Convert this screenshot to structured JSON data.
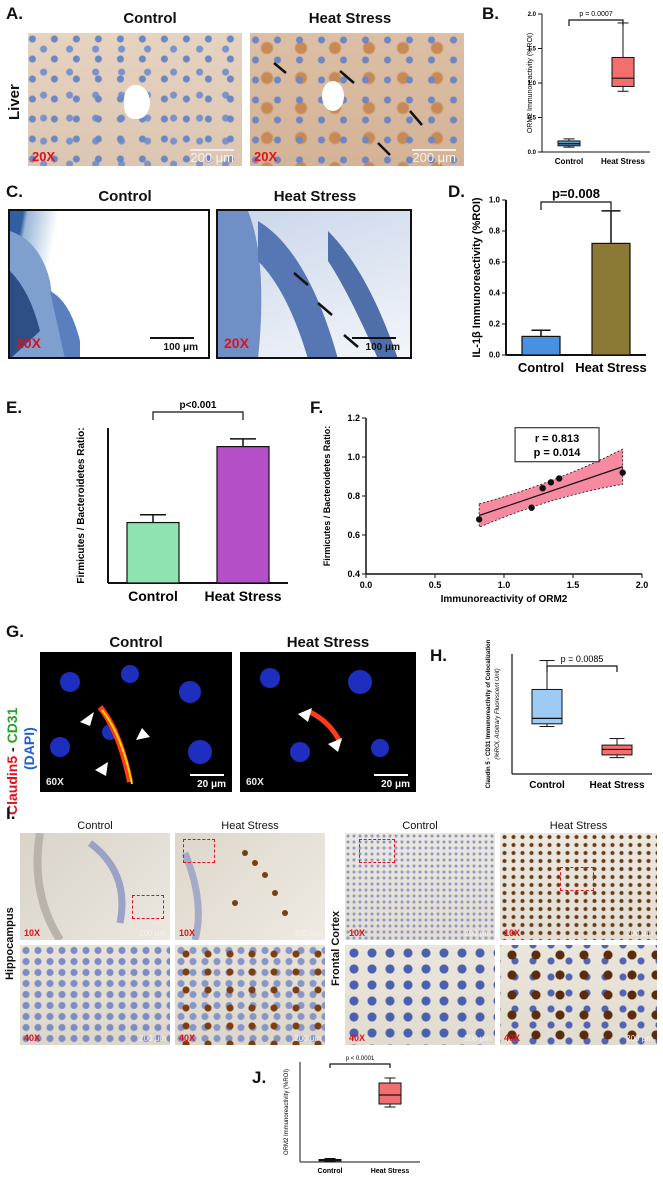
{
  "panel_A": {
    "label": "A.",
    "row_label": "Liver",
    "titles": [
      "Control",
      "Heat Stress"
    ],
    "magnification": "20X",
    "scale_bar": "200 μm"
  },
  "panel_C": {
    "label": "C.",
    "titles": [
      "Control",
      "Heat Stress"
    ],
    "magnification": "20X",
    "scale_bar": "100 μm"
  },
  "panel_G": {
    "label": "G.",
    "titles": [
      "Control",
      "Heat Stress"
    ],
    "stain_red": "Claudin5",
    "stain_sep": " - ",
    "stain_green": "CD31",
    "stain_blue": "(DAPI)",
    "magnification": "60X",
    "scale_bar": "20 μm"
  },
  "panel_I": {
    "label": "I.",
    "region_left": "Hippocampus",
    "region_right": "Frontal Cortex",
    "titles": [
      "Control",
      "Heat Stress",
      "Control",
      "Heat Stress"
    ],
    "mag_low": "10X",
    "mag_high": "40X",
    "scale_bar": "200 μm"
  },
  "chart_data": [
    {
      "id": "B",
      "label": "B.",
      "type": "box",
      "categories": [
        "Control",
        "Heat Stress"
      ],
      "ylabel": "ORM2 Immunoreactivity (%ROI)",
      "ylim": [
        0,
        2.0
      ],
      "yticks": [
        "0.0",
        "0.5",
        "1.0",
        "1.5",
        "2.0"
      ],
      "annotation": "p = 0.0007",
      "boxes": [
        {
          "min": 0.07,
          "q1": 0.09,
          "median": 0.12,
          "q3": 0.16,
          "max": 0.19,
          "color": "#5b9bd5"
        },
        {
          "min": 0.88,
          "q1": 0.95,
          "median": 1.07,
          "q3": 1.37,
          "max": 1.87,
          "color": "#f36f6f"
        }
      ]
    },
    {
      "id": "D",
      "label": "D.",
      "type": "bar",
      "categories": [
        "Control",
        "Heat Stress"
      ],
      "ylabel": "IL-1β Immunoreactivity (%ROI)",
      "ylim": [
        0,
        1.0
      ],
      "yticks": [
        "0.0",
        "0.2",
        "0.4",
        "0.6",
        "0.8",
        "1.0"
      ],
      "values": [
        0.12,
        0.72
      ],
      "errors": [
        0.04,
        0.21
      ],
      "colors": [
        "#4a90e2",
        "#8b7a35"
      ],
      "annotation": "p=0.008"
    },
    {
      "id": "E",
      "label": "E.",
      "type": "bar",
      "categories": [
        "Control",
        "Heat Stress"
      ],
      "ylabel": "Firmicutes / Bacteroidetes Ratio:",
      "ylim": [
        0,
        1.0
      ],
      "values": [
        0.39,
        0.88
      ],
      "errors": [
        0.05,
        0.05
      ],
      "colors": [
        "#8fe3b0",
        "#b44fc8"
      ],
      "annotation": "p<0.001"
    },
    {
      "id": "F",
      "label": "F.",
      "type": "scatter",
      "xlabel": "Immunoreactivity of ORM2",
      "ylabel": "Firmicutes / Bacteroidetes Ratio:",
      "xlim": [
        0,
        2.0
      ],
      "ylim": [
        0.4,
        1.2
      ],
      "xticks": [
        "0.0",
        "0.5",
        "1.0",
        "1.5",
        "2.0"
      ],
      "yticks": [
        "0.4",
        "0.6",
        "0.8",
        "1.0",
        "1.2"
      ],
      "x": [
        0.82,
        1.2,
        1.28,
        1.34,
        1.4,
        1.86
      ],
      "y": [
        0.68,
        0.74,
        0.84,
        0.87,
        0.89,
        0.92
      ],
      "fit": {
        "x0": 0.82,
        "y0": 0.7,
        "x1": 1.86,
        "y1": 0.95
      },
      "annotation_r": "r = 0.813",
      "annotation_p": "p = 0.014"
    },
    {
      "id": "H",
      "label": "H.",
      "type": "box",
      "categories": [
        "Control",
        "Heat Stress"
      ],
      "ylabel": "Claudin 5 - CD31 Immunoreactivity of Colocalization",
      "ylabel2": "(%ROI, Arbitrary Fluorescent Unit)",
      "ylim": [
        0,
        2.2
      ],
      "annotation": "p = 0.0085",
      "boxes": [
        {
          "min": 0.87,
          "q1": 0.92,
          "median": 1.02,
          "q3": 1.55,
          "max": 2.08,
          "color": "#9ecbf5"
        },
        {
          "min": 0.3,
          "q1": 0.35,
          "median": 0.45,
          "q3": 0.53,
          "max": 0.65,
          "color": "#f36f6f"
        }
      ]
    },
    {
      "id": "J",
      "label": "J.",
      "type": "box",
      "categories": [
        "Control",
        "Heat Stress"
      ],
      "ylabel": "ORM2 Immunoreactivity (%ROI)",
      "ylim": [
        0,
        1.0
      ],
      "annotation": "p < 0.0001",
      "boxes": [
        {
          "min": 0.005,
          "q1": 0.012,
          "median": 0.02,
          "q3": 0.025,
          "max": 0.035,
          "color": "#5b9bd5"
        },
        {
          "min": 0.55,
          "q1": 0.58,
          "median": 0.67,
          "q3": 0.79,
          "max": 0.84,
          "color": "#f36f6f"
        }
      ]
    }
  ]
}
